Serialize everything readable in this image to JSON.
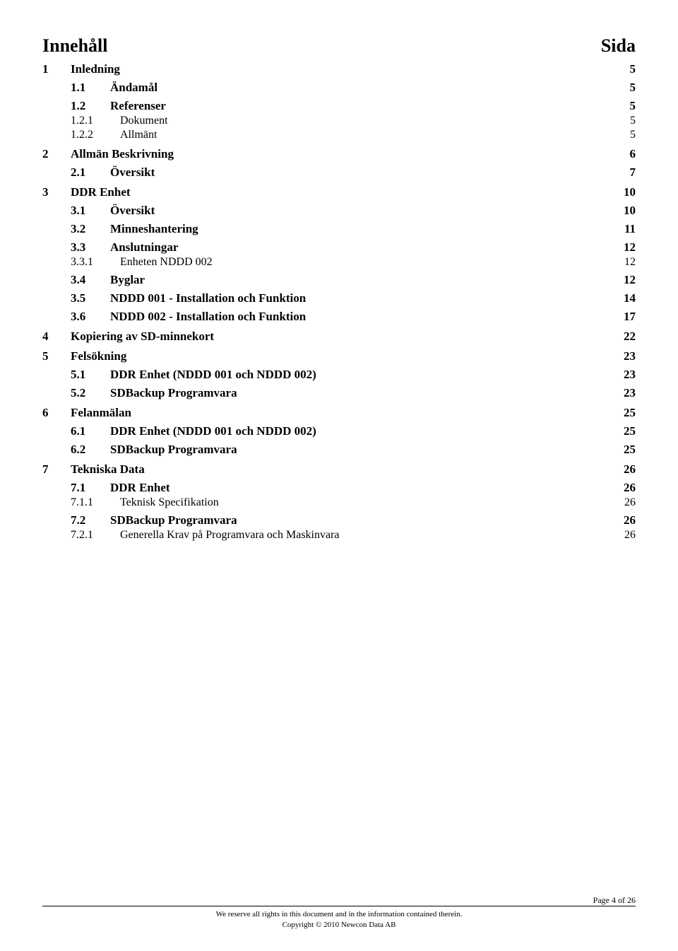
{
  "header": {
    "left": "Innehåll",
    "right": "Sida"
  },
  "toc": [
    {
      "level": 1,
      "num": "1",
      "title": "Inledning",
      "page": "5"
    },
    {
      "level": 2,
      "num": "1.1",
      "title": "Ändamål",
      "page": "5"
    },
    {
      "level": 2,
      "num": "1.2",
      "title": "Referenser",
      "page": "5"
    },
    {
      "level": 3,
      "num": "1.2.1",
      "title": "Dokument",
      "page": "5"
    },
    {
      "level": 3,
      "num": "1.2.2",
      "title": "Allmänt",
      "page": "5"
    },
    {
      "level": 1,
      "num": "2",
      "title": "Allmän Beskrivning",
      "page": "6"
    },
    {
      "level": 2,
      "num": "2.1",
      "title": "Översikt",
      "page": "7"
    },
    {
      "level": 1,
      "num": "3",
      "title": "DDR Enhet",
      "page": "10"
    },
    {
      "level": 2,
      "num": "3.1",
      "title": "Översikt",
      "page": "10"
    },
    {
      "level": 2,
      "num": "3.2",
      "title": "Minneshantering",
      "page": "11"
    },
    {
      "level": 2,
      "num": "3.3",
      "title": "Anslutningar",
      "page": "12"
    },
    {
      "level": 3,
      "num": "3.3.1",
      "title": "Enheten NDDD 002",
      "page": "12"
    },
    {
      "level": 2,
      "num": "3.4",
      "title": "Byglar",
      "page": "12"
    },
    {
      "level": 2,
      "num": "3.5",
      "title": "NDDD 001 - Installation och Funktion",
      "page": "14"
    },
    {
      "level": 2,
      "num": "3.6",
      "title": "NDDD 002 - Installation och Funktion",
      "page": "17"
    },
    {
      "level": 1,
      "num": "4",
      "title": "Kopiering av SD-minnekort",
      "page": "22"
    },
    {
      "level": 1,
      "num": "5",
      "title": "Felsökning",
      "page": "23"
    },
    {
      "level": 2,
      "num": "5.1",
      "title": "DDR Enhet (NDDD 001 och NDDD 002)",
      "page": "23"
    },
    {
      "level": 2,
      "num": "5.2",
      "title": "SDBackup Programvara",
      "page": "23"
    },
    {
      "level": 1,
      "num": "6",
      "title": "Felanmälan",
      "page": "25"
    },
    {
      "level": 2,
      "num": "6.1",
      "title": "DDR Enhet (NDDD 001 och NDDD 002)",
      "page": "25"
    },
    {
      "level": 2,
      "num": "6.2",
      "title": "SDBackup Programvara",
      "page": "25"
    },
    {
      "level": 1,
      "num": "7",
      "title": "Tekniska Data",
      "page": "26"
    },
    {
      "level": 2,
      "num": "7.1",
      "title": "DDR Enhet",
      "page": "26"
    },
    {
      "level": 3,
      "num": "7.1.1",
      "title": "Teknisk Specifikation",
      "page": "26"
    },
    {
      "level": 2,
      "num": "7.2",
      "title": "SDBackup Programvara",
      "page": "26"
    },
    {
      "level": 3,
      "num": "7.2.1",
      "title": "Generella Krav på Programvara och Maskinvara",
      "page": "26"
    }
  ],
  "footer": {
    "page_label": "Page 4 of 26",
    "line1": "We reserve all rights in this document and in the information contained therein.",
    "line2": "Copyright © 2010 Newcon Data AB"
  }
}
